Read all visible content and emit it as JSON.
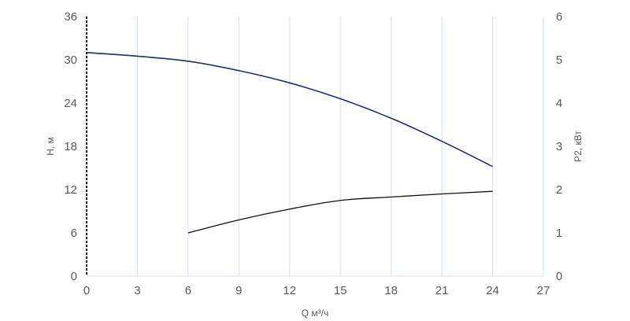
{
  "chart_data": {
    "type": "line",
    "xlabel": "Q м³/ч",
    "ylabel_left": "H, м",
    "ylabel_right": "P2, кВт",
    "xlim": [
      0,
      27
    ],
    "ylim_left": [
      0,
      36
    ],
    "ylim_right": [
      0,
      6
    ],
    "x_ticks": [
      "0",
      "3",
      "6",
      "9",
      "12",
      "15",
      "18",
      "21",
      "24",
      "27"
    ],
    "y_left_ticks": [
      "0",
      "6",
      "12",
      "18",
      "24",
      "30",
      "36"
    ],
    "y_right_ticks": [
      "0",
      "1",
      "2",
      "3",
      "4",
      "5",
      "6"
    ],
    "grid": "vertical",
    "series": [
      {
        "axis": "left",
        "color": "#1f2f6b",
        "x": [
          0,
          3,
          6,
          9,
          12,
          15,
          18,
          21,
          24
        ],
        "y": [
          31,
          30.5,
          29.8,
          28.5,
          26.8,
          24.6,
          21.9,
          18.7,
          15.2
        ]
      },
      {
        "axis": "right",
        "color": "#111111",
        "x": [
          6,
          9,
          12,
          15,
          18,
          21,
          24
        ],
        "y": [
          1.0,
          1.3,
          1.55,
          1.75,
          1.83,
          1.9,
          1.96
        ]
      }
    ]
  }
}
